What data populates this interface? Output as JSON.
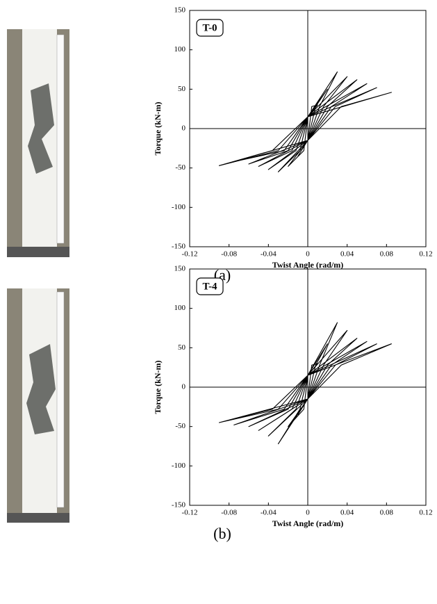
{
  "chart_data": [
    {
      "type": "line",
      "label": "T-0",
      "caption": "(a)",
      "x_label": "Twist Angle (rad/m)",
      "y_label": "Torque (kN-m)",
      "xlim": [
        -0.12,
        0.12
      ],
      "ylim": [
        -150,
        150
      ],
      "xticks": [
        -0.12,
        -0.08,
        -0.04,
        0,
        0.04,
        0.08,
        0.12
      ],
      "yticks": [
        -150,
        -100,
        -50,
        0,
        50,
        100,
        150
      ],
      "series": [
        {
          "color": "#000000",
          "x": [
            -0.01,
            0,
            0.004,
            0.01,
            0,
            -0.004,
            -0.02,
            0,
            0.008,
            0.02,
            0,
            -0.008,
            -0.03,
            0,
            0.012,
            0.03,
            0,
            -0.012,
            -0.04,
            0,
            0.016,
            0.04,
            0,
            -0.016,
            -0.05,
            0,
            0.02,
            0.05,
            0,
            -0.02,
            -0.06,
            0,
            0.024,
            0.06,
            0,
            -0.024,
            -0.075,
            0,
            0.028,
            0.07,
            0,
            -0.03,
            -0.09,
            0,
            0.034,
            0.085,
            0,
            -0.036,
            -0.09
          ],
          "values": [
            -35,
            -15,
            28,
            30,
            15,
            -28,
            -48,
            -15,
            28,
            50,
            15,
            -28,
            -55,
            -15,
            28,
            72,
            15,
            -28,
            -52,
            -15,
            28,
            66,
            15,
            -28,
            -48,
            -15,
            28,
            62,
            15,
            -28,
            -45,
            -15,
            28,
            57,
            15,
            -28,
            -42,
            -15,
            28,
            52,
            15,
            -28,
            -47,
            -15,
            28,
            46,
            15,
            -28,
            -47
          ]
        }
      ]
    },
    {
      "type": "line",
      "label": "T-4",
      "caption": "(b)",
      "x_label": "Twist Angle (rad/m)",
      "y_label": "Torque (kN-m)",
      "xlim": [
        -0.12,
        0.12
      ],
      "ylim": [
        -150,
        150
      ],
      "xticks": [
        -0.12,
        -0.08,
        -0.04,
        0,
        0.04,
        0.08,
        0.12
      ],
      "yticks": [
        -150,
        -100,
        -50,
        0,
        50,
        100,
        150
      ],
      "series": [
        {
          "color": "#000000",
          "x": [
            -0.01,
            0,
            0.004,
            0.01,
            0,
            -0.004,
            -0.02,
            0,
            0.008,
            0.02,
            0,
            -0.008,
            -0.03,
            0,
            0.012,
            0.03,
            0,
            -0.012,
            -0.04,
            0,
            0.016,
            0.04,
            0,
            -0.016,
            -0.05,
            0,
            0.02,
            0.05,
            0,
            -0.02,
            -0.06,
            0,
            0.024,
            0.06,
            0,
            -0.024,
            -0.075,
            0,
            0.028,
            0.07,
            0,
            -0.03,
            -0.09,
            0,
            0.034,
            0.085,
            0,
            -0.036,
            -0.09
          ],
          "values": [
            -35,
            -15,
            28,
            30,
            15,
            -28,
            -50,
            -15,
            28,
            55,
            15,
            -28,
            -72,
            -15,
            28,
            82,
            15,
            -28,
            -62,
            -15,
            28,
            72,
            15,
            -28,
            -55,
            -15,
            28,
            62,
            15,
            -28,
            -50,
            -15,
            28,
            58,
            15,
            -28,
            -48,
            -15,
            28,
            55,
            15,
            -28,
            -45,
            -15,
            28,
            55,
            15,
            -28,
            -45
          ]
        }
      ]
    }
  ]
}
